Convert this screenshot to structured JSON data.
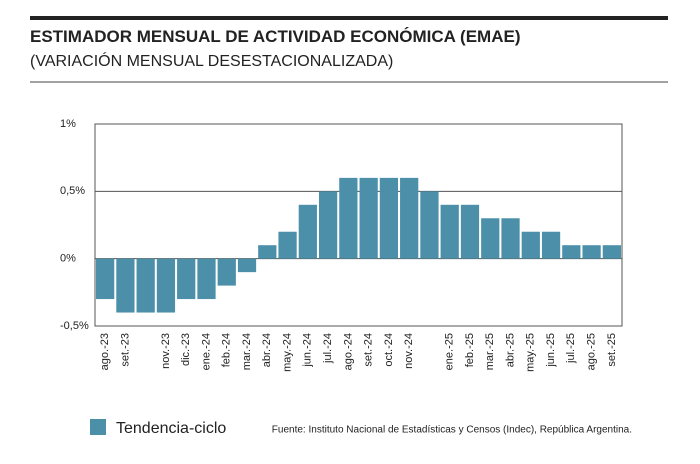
{
  "chart_data": {
    "type": "bar",
    "title": "ESTIMADOR MENSUAL DE ACTIVIDAD ECONÓMICA (EMAE)",
    "subtitle": "(VARIACIÓN MENSUAL DESESTACIONALIZADA)",
    "categories": [
      "ago.-23",
      "set.-23",
      null,
      "nov.-23",
      "dic.-23",
      "ene.-24",
      "feb.-24",
      "mar.-24",
      "abr.-24",
      "may.-24",
      "jun.-24",
      "jul.-24",
      "ago.-24",
      "set.-24",
      "oct.-24",
      "nov.-24",
      null,
      "ene.-25",
      "feb.-25",
      "mar.-25",
      "abr.-25",
      "may.-25",
      "jun.-25",
      "jul.-25",
      "ago.-25",
      "set.-25"
    ],
    "series": [
      {
        "name": "Tendencia-ciclo",
        "color": "#4b8fa9",
        "values": [
          -0.3,
          -0.4,
          -0.4,
          -0.4,
          -0.3,
          -0.3,
          -0.2,
          -0.1,
          0.1,
          0.2,
          0.4,
          0.5,
          0.6,
          0.6,
          0.6,
          0.6,
          0.5,
          0.4,
          0.4,
          0.3,
          0.3,
          0.2,
          0.2,
          0.1,
          0.1,
          0.1
        ]
      }
    ],
    "ylim": [
      -0.5,
      1
    ],
    "yticks": [
      {
        "value": 1,
        "label": "1%"
      },
      {
        "value": 0.5,
        "label": "0,5%"
      },
      {
        "value": 0,
        "label": "0%"
      },
      {
        "value": -0.5,
        "label": "-0,5%"
      }
    ],
    "grid": true,
    "legend": "bottom-left",
    "source": "Fuente: Instituto Nacional de Estadísticas y Censos (Indec), República Argentina."
  }
}
